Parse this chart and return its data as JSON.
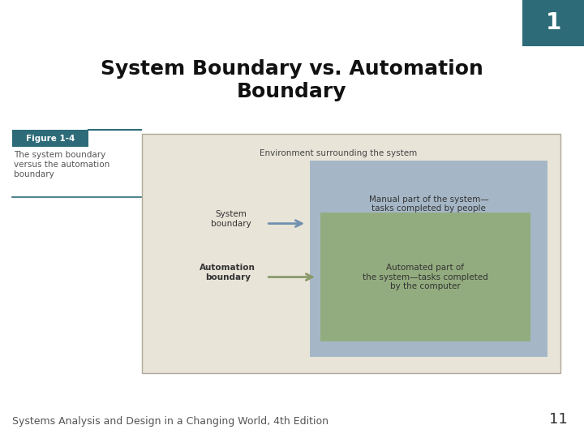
{
  "title": "System Boundary vs. Automation\nBoundary",
  "title_fontsize": 18,
  "title_fontweight": "bold",
  "title_color": "#111111",
  "footer_text": "Systems Analysis and Design in a Changing World, 4th Edition",
  "footer_number": "11",
  "footer_fontsize": 9,
  "figure_label": "Figure 1-4",
  "figure_caption": "The system boundary\nversus the automation\nboundary",
  "background_color": "#ffffff",
  "corner_box_color": "#2d6b78",
  "corner_box_number": "1",
  "outer_rect_color": "#e8e4d8",
  "outer_rect_edge": "#b0a898",
  "system_rect_color": "#8fa8c0",
  "auto_rect_color": "#8faa6e",
  "env_label": "Environment surrounding the system",
  "sys_boundary_label": "System\nboundary",
  "auto_boundary_label": "Automation\nboundary",
  "manual_label": "Manual part of the system—\ntasks completed by people",
  "auto_label": "Automated part of\nthe system—tasks completed\nby the computer",
  "sys_arrow_color": "#7090b0",
  "auto_arrow_color": "#8a9a6a",
  "label_fontsize": 7.5,
  "caption_fontsize": 7.5,
  "fig_label_bg": "#2d6b78",
  "fig_label_color": "#ffffff",
  "teal_line_color": "#2d6b78"
}
